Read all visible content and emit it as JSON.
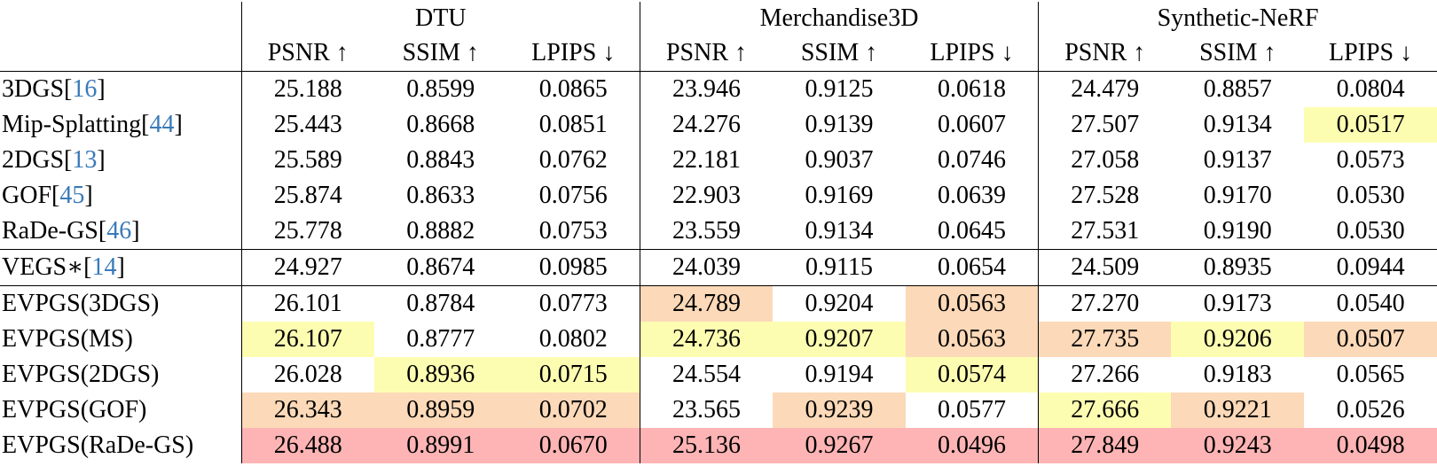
{
  "table": {
    "groups": [
      "DTU",
      "Merchandise3D",
      "Synthetic-NeRF"
    ],
    "columns": [
      "PSNR ↑",
      "SSIM ↑",
      "LPIPS ↓",
      "PSNR ↑",
      "SSIM ↑",
      "LPIPS ↓",
      "PSNR ↑",
      "SSIM ↑",
      "LPIPS ↓"
    ],
    "citation_color": "#3a7ab8",
    "sections": [
      {
        "rows": [
          {
            "method": [
              "3DGS[",
              "16",
              "]"
            ],
            "values": [
              "25.188",
              "0.8599",
              "0.0865",
              "23.946",
              "0.9125",
              "0.0618",
              "24.479",
              "0.8857",
              "0.0804"
            ],
            "highlight": [
              null,
              null,
              null,
              null,
              null,
              null,
              null,
              null,
              null
            ]
          },
          {
            "method": [
              "Mip-Splatting[",
              "44",
              "]"
            ],
            "values": [
              "25.443",
              "0.8668",
              "0.0851",
              "24.276",
              "0.9139",
              "0.0607",
              "27.507",
              "0.9134",
              "0.0517"
            ],
            "highlight": [
              null,
              null,
              null,
              null,
              null,
              null,
              null,
              null,
              "#fdfdb2"
            ]
          },
          {
            "method": [
              "2DGS[",
              "13",
              "]"
            ],
            "values": [
              "25.589",
              "0.8843",
              "0.0762",
              "22.181",
              "0.9037",
              "0.0746",
              "27.058",
              "0.9137",
              "0.0573"
            ],
            "highlight": [
              null,
              null,
              null,
              null,
              null,
              null,
              null,
              null,
              null
            ]
          },
          {
            "method": [
              "GOF[",
              "45",
              "]"
            ],
            "values": [
              "25.874",
              "0.8633",
              "0.0756",
              "22.903",
              "0.9169",
              "0.0639",
              "27.528",
              "0.9170",
              "0.0530"
            ],
            "highlight": [
              null,
              null,
              null,
              null,
              null,
              null,
              null,
              null,
              null
            ]
          },
          {
            "method": [
              "RaDe-GS[",
              "46",
              "]"
            ],
            "values": [
              "25.778",
              "0.8882",
              "0.0753",
              "23.559",
              "0.9134",
              "0.0645",
              "27.531",
              "0.9190",
              "0.0530"
            ],
            "highlight": [
              null,
              null,
              null,
              null,
              null,
              null,
              null,
              null,
              null
            ]
          }
        ]
      },
      {
        "rows": [
          {
            "method": [
              "VEGS∗[",
              "14",
              "]"
            ],
            "values": [
              "24.927",
              "0.8674",
              "0.0985",
              "24.039",
              "0.9115",
              "0.0654",
              "24.509",
              "0.8935",
              "0.0944"
            ],
            "highlight": [
              null,
              null,
              null,
              null,
              null,
              null,
              null,
              null,
              null
            ]
          }
        ]
      },
      {
        "rows": [
          {
            "method": [
              "EVPGS(3DGS)"
            ],
            "values": [
              "26.101",
              "0.8784",
              "0.0773",
              "24.789",
              "0.9204",
              "0.0563",
              "27.270",
              "0.9173",
              "0.0540"
            ],
            "highlight": [
              null,
              null,
              null,
              "#fcd9b8",
              null,
              "#fcd9b8",
              null,
              null,
              null
            ]
          },
          {
            "method": [
              "EVPGS(MS)"
            ],
            "values": [
              "26.107",
              "0.8777",
              "0.0802",
              "24.736",
              "0.9207",
              "0.0563",
              "27.735",
              "0.9206",
              "0.0507"
            ],
            "highlight": [
              "#fdfdb2",
              null,
              null,
              "#fdfdb2",
              "#fdfdb2",
              "#fcd9b8",
              "#fcd9b8",
              "#fdfdb2",
              "#fcd9b8"
            ]
          },
          {
            "method": [
              "EVPGS(2DGS)"
            ],
            "values": [
              "26.028",
              "0.8936",
              "0.0715",
              "24.554",
              "0.9194",
              "0.0574",
              "27.266",
              "0.9183",
              "0.0565"
            ],
            "highlight": [
              null,
              "#fdfdb2",
              "#fdfdb2",
              null,
              null,
              "#fdfdb2",
              null,
              null,
              null
            ]
          },
          {
            "method": [
              "EVPGS(GOF)"
            ],
            "values": [
              "26.343",
              "0.8959",
              "0.0702",
              "23.565",
              "0.9239",
              "0.0577",
              "27.666",
              "0.9221",
              "0.0526"
            ],
            "highlight": [
              "#fcd9b8",
              "#fcd9b8",
              "#fcd9b8",
              null,
              "#fcd9b8",
              null,
              "#fdfdb2",
              "#fcd9b8",
              null
            ]
          },
          {
            "method": [
              "EVPGS(RaDe-GS)"
            ],
            "values": [
              "26.488",
              "0.8991",
              "0.0670",
              "25.136",
              "0.9267",
              "0.0496",
              "27.849",
              "0.9243",
              "0.0498"
            ],
            "highlight": [
              "#feb4b4",
              "#feb4b4",
              "#feb4b4",
              "#feb4b4",
              "#feb4b4",
              "#feb4b4",
              "#feb4b4",
              "#feb4b4",
              "#feb4b4"
            ]
          }
        ]
      }
    ]
  }
}
